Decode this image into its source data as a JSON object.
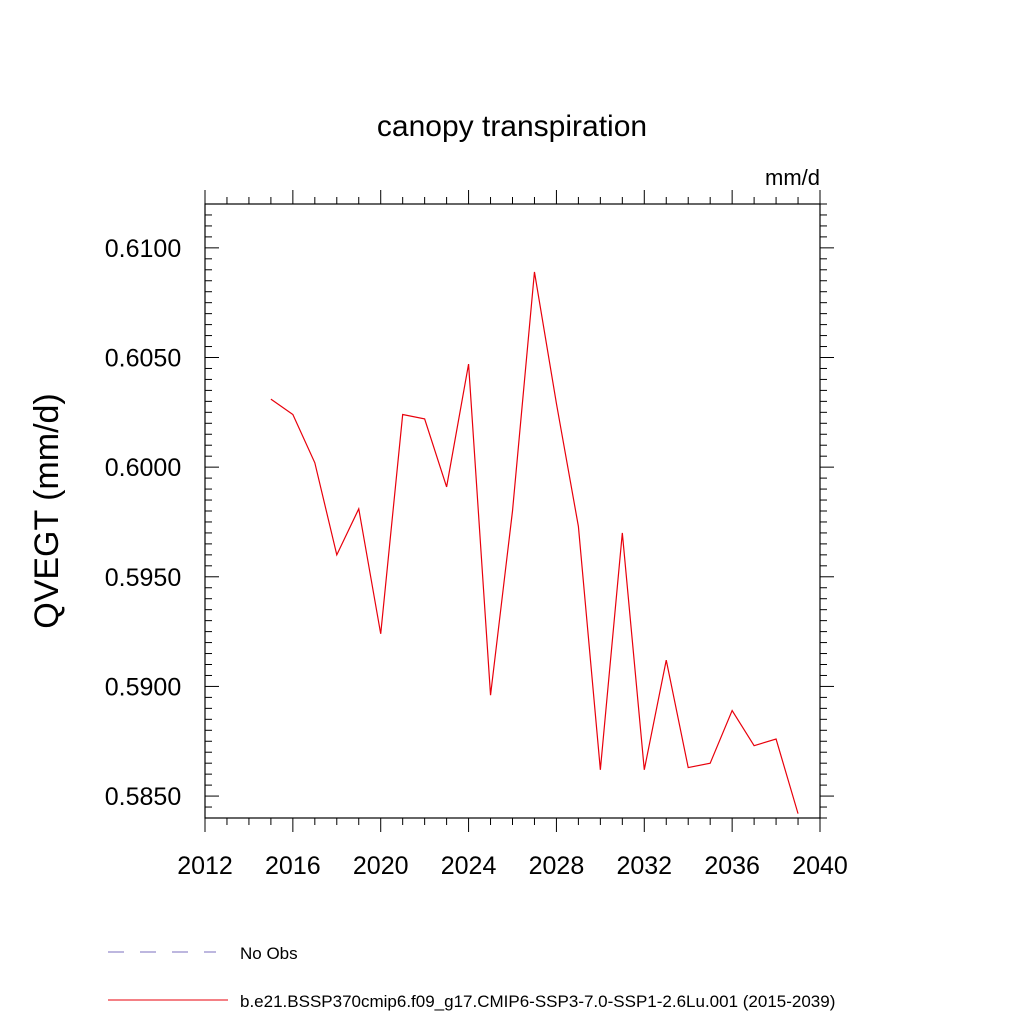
{
  "chart_data": {
    "type": "line",
    "title": "canopy transpiration",
    "units_label": "mm/d",
    "xlabel": "",
    "ylabel": "QVEGT  (mm/d)",
    "xlim": [
      2012,
      2040
    ],
    "ylim": [
      0.584,
      0.612
    ],
    "x_ticks": [
      2012,
      2016,
      2020,
      2024,
      2028,
      2032,
      2036,
      2040
    ],
    "y_ticks": [
      0.585,
      0.59,
      0.595,
      0.6,
      0.605,
      0.61
    ],
    "y_tick_labels": [
      "0.5850",
      "0.5900",
      "0.5950",
      "0.6000",
      "0.6050",
      "0.6100"
    ],
    "grid": false,
    "legend_position": "bottom",
    "series": [
      {
        "name": "b.e21.BSSP370cmip6.f09_g17.CMIP6-SSP3-7.0-SSP1-2.6Lu.001 (2015-2039)",
        "color": "#e8000b",
        "style": "solid",
        "x": [
          2015,
          2016,
          2017,
          2018,
          2019,
          2020,
          2021,
          2022,
          2023,
          2024,
          2025,
          2026,
          2027,
          2028,
          2029,
          2030,
          2031,
          2032,
          2033,
          2034,
          2035,
          2036,
          2037,
          2038,
          2039
        ],
        "y": [
          0.6031,
          0.6024,
          0.6002,
          0.596,
          0.5981,
          0.5924,
          0.6024,
          0.6022,
          0.5991,
          0.6047,
          0.5896,
          0.598,
          0.6089,
          0.6029,
          0.5973,
          0.5862,
          0.597,
          0.5862,
          0.5912,
          0.5863,
          0.5865,
          0.5889,
          0.5873,
          0.5876,
          0.5842
        ]
      }
    ],
    "legend": [
      {
        "label": "No Obs",
        "color": "#7b6fbf",
        "style": "dashed"
      },
      {
        "label": "b.e21.BSSP370cmip6.f09_g17.CMIP6-SSP3-7.0-SSP1-2.6Lu.001 (2015-2039)",
        "color": "#e8000b",
        "style": "solid"
      }
    ]
  }
}
